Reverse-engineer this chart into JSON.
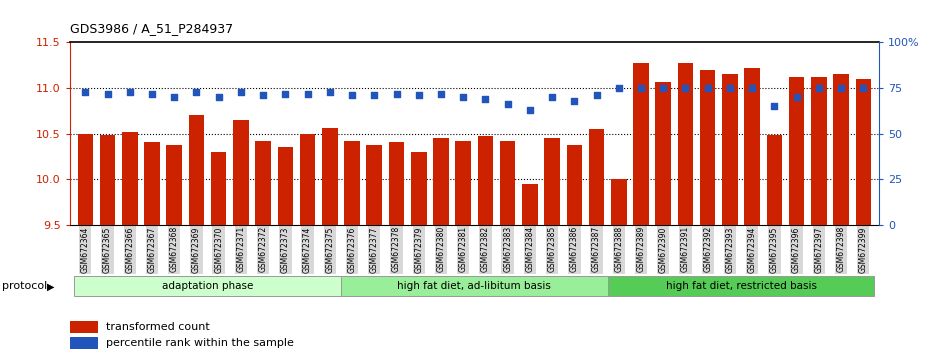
{
  "title": "GDS3986 / A_51_P284937",
  "samples": [
    "GSM672364",
    "GSM672365",
    "GSM672366",
    "GSM672367",
    "GSM672368",
    "GSM672369",
    "GSM672370",
    "GSM672371",
    "GSM672372",
    "GSM672373",
    "GSM672374",
    "GSM672375",
    "GSM672376",
    "GSM672377",
    "GSM672378",
    "GSM672379",
    "GSM672380",
    "GSM672381",
    "GSM672382",
    "GSM672383",
    "GSM672384",
    "GSM672385",
    "GSM672386",
    "GSM672387",
    "GSM672388",
    "GSM672389",
    "GSM672390",
    "GSM672391",
    "GSM672392",
    "GSM672393",
    "GSM672394",
    "GSM672395",
    "GSM672396",
    "GSM672397",
    "GSM672398",
    "GSM672399"
  ],
  "bar_values": [
    10.5,
    10.48,
    10.52,
    10.41,
    10.38,
    10.7,
    10.3,
    10.65,
    10.42,
    10.35,
    10.5,
    10.56,
    10.42,
    10.38,
    10.41,
    10.3,
    10.45,
    10.42,
    10.47,
    10.42,
    9.95,
    10.45,
    10.38,
    10.55,
    10.0,
    11.27,
    11.07,
    11.28,
    11.2,
    11.15,
    11.22,
    10.48,
    11.12,
    11.12,
    11.15,
    11.1
  ],
  "percentile_values": [
    73,
    72,
    73,
    72,
    70,
    73,
    70,
    73,
    71,
    72,
    72,
    73,
    71,
    71,
    72,
    71,
    72,
    70,
    69,
    66,
    63,
    70,
    68,
    71,
    75,
    75,
    75,
    75,
    75,
    75,
    75,
    65,
    70,
    75,
    75,
    75
  ],
  "ylim": [
    9.5,
    11.5
  ],
  "yticks": [
    9.5,
    10.0,
    10.5,
    11.0,
    11.5
  ],
  "y2lim": [
    0,
    100
  ],
  "y2ticks": [
    0,
    25,
    50,
    75,
    100
  ],
  "y2ticklabels": [
    "0",
    "25",
    "50",
    "75",
    "100%"
  ],
  "bar_color": "#cc2200",
  "dot_color": "#2255bb",
  "groups": [
    {
      "label": "adaptation phase",
      "start": 0,
      "end": 12,
      "color": "#ccffcc"
    },
    {
      "label": "high fat diet, ad-libitum basis",
      "start": 12,
      "end": 24,
      "color": "#99ee99"
    },
    {
      "label": "high fat diet, restricted basis",
      "start": 24,
      "end": 36,
      "color": "#55cc55"
    }
  ],
  "xlabel_protocol": "protocol",
  "legend_bar": "transformed count",
  "legend_dot": "percentile rank within the sample",
  "dotted_lines": [
    10.0,
    10.5,
    11.0
  ],
  "bar_width": 0.7,
  "tick_bg_color": "#d8d8d8"
}
